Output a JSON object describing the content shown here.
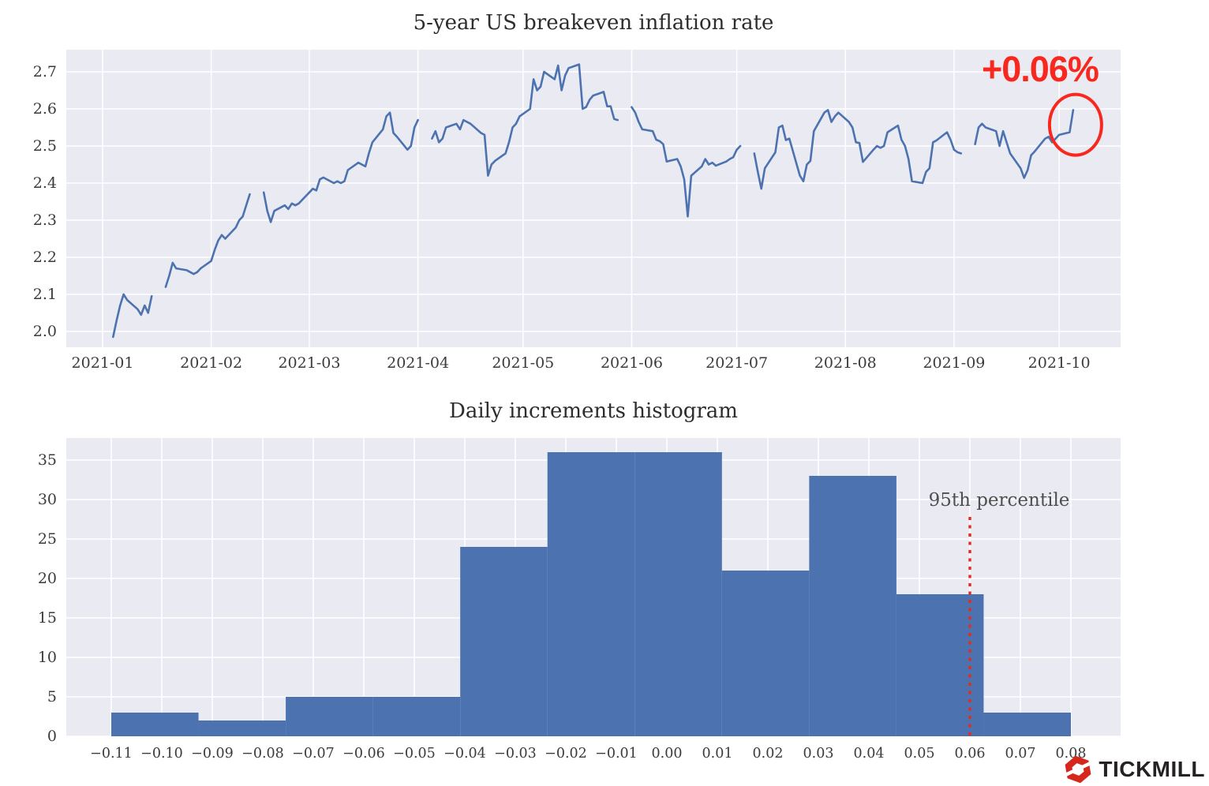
{
  "colors": {
    "figure_bg": "#ffffff",
    "plot_bg": "#eaeaf2",
    "grid": "#ffffff",
    "line": "#4c72b0",
    "bar": "#4c72b0",
    "accent_red": "#f8281e",
    "percentile_red": "#e8291c",
    "tick_text": "#3b3b3b",
    "title_text": "#2d2d2d",
    "logo_red": "#d6271c",
    "logo_text_color": "#262223"
  },
  "top_annotations": {
    "change_label": "+0.06%"
  },
  "bottom_annotations": {
    "percentile_label": "95th percentile"
  },
  "branding": {
    "logo_text": "TICKMILL"
  },
  "chart_data": [
    {
      "type": "line",
      "title": "5-year US breakeven inflation rate",
      "ylabel": "",
      "xlabel": "",
      "grid": true,
      "ylim": [
        1.957,
        2.76
      ],
      "yticks": [
        2.0,
        2.1,
        2.2,
        2.3,
        2.4,
        2.5,
        2.6,
        2.7
      ],
      "ytick_labels": [
        "2.0",
        "2.1",
        "2.2",
        "2.3",
        "2.4",
        "2.5",
        "2.6",
        "2.7"
      ],
      "xtick_dates": [
        "2021-01-01",
        "2021-02-01",
        "2021-03-01",
        "2021-04-01",
        "2021-05-01",
        "2021-06-01",
        "2021-07-01",
        "2021-08-01",
        "2021-09-01",
        "2021-10-01"
      ],
      "xtick_labels": [
        "2021-01",
        "2021-02",
        "2021-03",
        "2021-04",
        "2021-05",
        "2021-06",
        "2021-07",
        "2021-08",
        "2021-09",
        "2021-10"
      ],
      "x_range_dates": [
        "2020-12-22",
        "2021-10-19"
      ],
      "annotation": {
        "text": "+0.06%",
        "circle_date": "2021-10-05",
        "circle_value": 2.57
      },
      "points": [
        [
          "2021-01-04",
          1.985
        ],
        [
          "2021-01-05",
          2.03
        ],
        [
          "2021-01-06",
          2.07
        ],
        [
          "2021-01-07",
          2.1
        ],
        [
          "2021-01-08",
          2.085
        ],
        [
          "2021-01-11",
          2.06
        ],
        [
          "2021-01-12",
          2.045
        ],
        [
          "2021-01-13",
          2.07
        ],
        [
          "2021-01-14",
          2.05
        ],
        [
          "2021-01-15",
          2.095
        ],
        [
          "2021-01-18",
          null
        ],
        [
          "2021-01-19",
          2.12
        ],
        [
          "2021-01-20",
          2.15
        ],
        [
          "2021-01-21",
          2.185
        ],
        [
          "2021-01-22",
          2.17
        ],
        [
          "2021-01-25",
          2.165
        ],
        [
          "2021-01-26",
          2.16
        ],
        [
          "2021-01-27",
          2.155
        ],
        [
          "2021-01-28",
          2.16
        ],
        [
          "2021-01-29",
          2.17
        ],
        [
          "2021-02-01",
          2.19
        ],
        [
          "2021-02-02",
          2.22
        ],
        [
          "2021-02-03",
          2.245
        ],
        [
          "2021-02-04",
          2.26
        ],
        [
          "2021-02-05",
          2.25
        ],
        [
          "2021-02-08",
          2.28
        ],
        [
          "2021-02-09",
          2.3
        ],
        [
          "2021-02-10",
          2.31
        ],
        [
          "2021-02-11",
          2.34
        ],
        [
          "2021-02-12",
          2.37
        ],
        [
          "2021-02-15",
          null
        ],
        [
          "2021-02-16",
          2.375
        ],
        [
          "2021-02-17",
          2.325
        ],
        [
          "2021-02-18",
          2.295
        ],
        [
          "2021-02-19",
          2.325
        ],
        [
          "2021-02-22",
          2.34
        ],
        [
          "2021-02-23",
          2.33
        ],
        [
          "2021-02-24",
          2.345
        ],
        [
          "2021-02-25",
          2.34
        ],
        [
          "2021-02-26",
          2.345
        ],
        [
          "2021-03-01",
          2.375
        ],
        [
          "2021-03-02",
          2.385
        ],
        [
          "2021-03-03",
          2.38
        ],
        [
          "2021-03-04",
          2.41
        ],
        [
          "2021-03-05",
          2.415
        ],
        [
          "2021-03-08",
          2.4
        ],
        [
          "2021-03-09",
          2.405
        ],
        [
          "2021-03-10",
          2.4
        ],
        [
          "2021-03-11",
          2.405
        ],
        [
          "2021-03-12",
          2.435
        ],
        [
          "2021-03-15",
          2.455
        ],
        [
          "2021-03-16",
          2.45
        ],
        [
          "2021-03-17",
          2.445
        ],
        [
          "2021-03-18",
          2.48
        ],
        [
          "2021-03-19",
          2.51
        ],
        [
          "2021-03-22",
          2.545
        ],
        [
          "2021-03-23",
          2.58
        ],
        [
          "2021-03-24",
          2.59
        ],
        [
          "2021-03-25",
          2.535
        ],
        [
          "2021-03-26",
          2.525
        ],
        [
          "2021-03-29",
          2.49
        ],
        [
          "2021-03-30",
          2.5
        ],
        [
          "2021-03-31",
          2.55
        ],
        [
          "2021-04-01",
          2.57
        ],
        [
          "2021-04-02",
          null
        ],
        [
          "2021-04-05",
          2.52
        ],
        [
          "2021-04-06",
          2.54
        ],
        [
          "2021-04-07",
          2.51
        ],
        [
          "2021-04-08",
          2.52
        ],
        [
          "2021-04-09",
          2.55
        ],
        [
          "2021-04-12",
          2.56
        ],
        [
          "2021-04-13",
          2.545
        ],
        [
          "2021-04-14",
          2.57
        ],
        [
          "2021-04-15",
          2.565
        ],
        [
          "2021-04-16",
          2.56
        ],
        [
          "2021-04-19",
          2.535
        ],
        [
          "2021-04-20",
          2.53
        ],
        [
          "2021-04-21",
          2.42
        ],
        [
          "2021-04-22",
          2.45
        ],
        [
          "2021-04-23",
          2.46
        ],
        [
          "2021-04-26",
          2.48
        ],
        [
          "2021-04-27",
          2.51
        ],
        [
          "2021-04-28",
          2.55
        ],
        [
          "2021-04-29",
          2.56
        ],
        [
          "2021-04-30",
          2.58
        ],
        [
          "2021-05-03",
          2.6
        ],
        [
          "2021-05-04",
          2.68
        ],
        [
          "2021-05-05",
          2.65
        ],
        [
          "2021-05-06",
          2.66
        ],
        [
          "2021-05-07",
          2.7
        ],
        [
          "2021-05-10",
          2.68
        ],
        [
          "2021-05-11",
          2.717
        ],
        [
          "2021-05-12",
          2.65
        ],
        [
          "2021-05-13",
          2.69
        ],
        [
          "2021-05-14",
          2.71
        ],
        [
          "2021-05-17",
          2.72
        ],
        [
          "2021-05-18",
          2.6
        ],
        [
          "2021-05-19",
          2.605
        ],
        [
          "2021-05-20",
          2.625
        ],
        [
          "2021-05-21",
          2.636
        ],
        [
          "2021-05-24",
          2.646
        ],
        [
          "2021-05-25",
          2.607
        ],
        [
          "2021-05-26",
          2.607
        ],
        [
          "2021-05-27",
          2.573
        ],
        [
          "2021-05-28",
          2.57
        ],
        [
          "2021-05-31",
          null
        ],
        [
          "2021-06-01",
          2.605
        ],
        [
          "2021-06-02",
          2.59
        ],
        [
          "2021-06-03",
          2.565
        ],
        [
          "2021-06-04",
          2.545
        ],
        [
          "2021-06-07",
          2.54
        ],
        [
          "2021-06-08",
          2.517
        ],
        [
          "2021-06-09",
          2.513
        ],
        [
          "2021-06-10",
          2.505
        ],
        [
          "2021-06-11",
          2.458
        ],
        [
          "2021-06-14",
          2.465
        ],
        [
          "2021-06-15",
          2.445
        ],
        [
          "2021-06-16",
          2.41
        ],
        [
          "2021-06-17",
          2.31
        ],
        [
          "2021-06-18",
          2.42
        ],
        [
          "2021-06-21",
          2.445
        ],
        [
          "2021-06-22",
          2.465
        ],
        [
          "2021-06-23",
          2.45
        ],
        [
          "2021-06-24",
          2.455
        ],
        [
          "2021-06-25",
          2.447
        ],
        [
          "2021-06-28",
          2.458
        ],
        [
          "2021-06-29",
          2.465
        ],
        [
          "2021-06-30",
          2.47
        ],
        [
          "2021-07-01",
          2.49
        ],
        [
          "2021-07-02",
          2.5
        ],
        [
          "2021-07-05",
          null
        ],
        [
          "2021-07-06",
          2.48
        ],
        [
          "2021-07-07",
          2.43
        ],
        [
          "2021-07-08",
          2.385
        ],
        [
          "2021-07-09",
          2.44
        ],
        [
          "2021-07-12",
          2.483
        ],
        [
          "2021-07-13",
          2.55
        ],
        [
          "2021-07-14",
          2.555
        ],
        [
          "2021-07-15",
          2.516
        ],
        [
          "2021-07-16",
          2.52
        ],
        [
          "2021-07-19",
          2.42
        ],
        [
          "2021-07-20",
          2.405
        ],
        [
          "2021-07-21",
          2.45
        ],
        [
          "2021-07-22",
          2.46
        ],
        [
          "2021-07-23",
          2.54
        ],
        [
          "2021-07-26",
          2.59
        ],
        [
          "2021-07-27",
          2.597
        ],
        [
          "2021-07-28",
          2.565
        ],
        [
          "2021-07-29",
          2.58
        ],
        [
          "2021-07-30",
          2.59
        ],
        [
          "2021-08-02",
          2.565
        ],
        [
          "2021-08-03",
          2.55
        ],
        [
          "2021-08-04",
          2.51
        ],
        [
          "2021-08-05",
          2.508
        ],
        [
          "2021-08-06",
          2.457
        ],
        [
          "2021-08-09",
          2.49
        ],
        [
          "2021-08-10",
          2.5
        ],
        [
          "2021-08-11",
          2.495
        ],
        [
          "2021-08-12",
          2.5
        ],
        [
          "2021-08-13",
          2.537
        ],
        [
          "2021-08-16",
          2.555
        ],
        [
          "2021-08-17",
          2.517
        ],
        [
          "2021-08-18",
          2.5
        ],
        [
          "2021-08-19",
          2.465
        ],
        [
          "2021-08-20",
          2.405
        ],
        [
          "2021-08-23",
          2.4
        ],
        [
          "2021-08-24",
          2.43
        ],
        [
          "2021-08-25",
          2.44
        ],
        [
          "2021-08-26",
          2.51
        ],
        [
          "2021-08-27",
          2.515
        ],
        [
          "2021-08-30",
          2.537
        ],
        [
          "2021-08-31",
          2.517
        ],
        [
          "2021-09-01",
          2.49
        ],
        [
          "2021-09-02",
          2.483
        ],
        [
          "2021-09-03",
          2.48
        ],
        [
          "2021-09-06",
          null
        ],
        [
          "2021-09-07",
          2.505
        ],
        [
          "2021-09-08",
          2.55
        ],
        [
          "2021-09-09",
          2.56
        ],
        [
          "2021-09-10",
          2.55
        ],
        [
          "2021-09-13",
          2.54
        ],
        [
          "2021-09-14",
          2.5
        ],
        [
          "2021-09-15",
          2.54
        ],
        [
          "2021-09-16",
          2.51
        ],
        [
          "2021-09-17",
          2.48
        ],
        [
          "2021-09-20",
          2.44
        ],
        [
          "2021-09-21",
          2.414
        ],
        [
          "2021-09-22",
          2.435
        ],
        [
          "2021-09-23",
          2.475
        ],
        [
          "2021-09-24",
          2.485
        ],
        [
          "2021-09-27",
          2.52
        ],
        [
          "2021-09-28",
          2.525
        ],
        [
          "2021-09-29",
          2.51
        ],
        [
          "2021-09-30",
          2.52
        ],
        [
          "2021-10-01",
          2.53
        ],
        [
          "2021-10-04",
          2.537
        ],
        [
          "2021-10-05",
          2.597
        ]
      ]
    },
    {
      "type": "bar",
      "title": "Daily increments histogram",
      "ylabel": "",
      "xlabel": "",
      "grid": true,
      "bin_start": -0.11,
      "bin_width": 0.0172727,
      "counts": [
        3,
        2,
        5,
        5,
        24,
        36,
        36,
        21,
        33,
        18,
        3
      ],
      "ylim": [
        0,
        37.8
      ],
      "yticks": [
        0,
        5,
        10,
        15,
        20,
        25,
        30,
        35
      ],
      "ytick_labels": [
        "0",
        "5",
        "10",
        "15",
        "20",
        "25",
        "30",
        "35"
      ],
      "xlim": [
        -0.119,
        0.0898
      ],
      "xticks": [
        -0.11,
        -0.1,
        -0.09,
        -0.08,
        -0.07,
        -0.06,
        -0.05,
        -0.04,
        -0.03,
        -0.02,
        -0.01,
        0.0,
        0.01,
        0.02,
        0.03,
        0.04,
        0.05,
        0.06,
        0.07,
        0.08
      ],
      "xtick_labels": [
        "−0.11",
        "−0.10",
        "−0.09",
        "−0.08",
        "−0.07",
        "−0.06",
        "−0.05",
        "−0.04",
        "−0.03",
        "−0.02",
        "−0.01",
        "0.00",
        "0.01",
        "0.02",
        "0.03",
        "0.04",
        "0.05",
        "0.06",
        "0.07",
        "0.08"
      ],
      "percentile_line": {
        "x": 0.06,
        "label": "95th percentile",
        "style": "dotted"
      }
    }
  ]
}
